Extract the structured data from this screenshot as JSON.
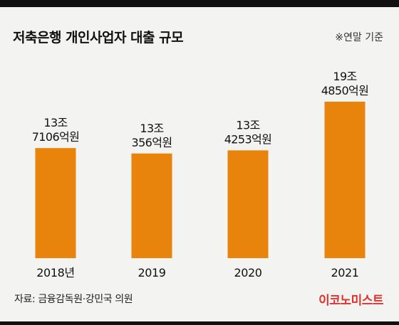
{
  "header": {
    "title": "저축은행 개인사업자 대출 규모",
    "unit_note": "※연말 기준"
  },
  "chart_data": {
    "type": "bar",
    "title": "저축은행 개인사업자 대출 규모",
    "categories": [
      "2018년",
      "2019",
      "2020",
      "2021"
    ],
    "values": [
      137106,
      130356,
      134253,
      194850
    ],
    "value_labels": [
      [
        "13조",
        "7106억원"
      ],
      [
        "13조",
        "356억원"
      ],
      [
        "13조",
        "4253억원"
      ],
      [
        "19조",
        "4850억원"
      ]
    ],
    "unit": "억원",
    "bar_color": "#e8830c",
    "grid": false
  },
  "footer": {
    "source": "자료: 금융감독원·강민국 의원",
    "brand": "이코노미스트",
    "brand_color": "#e0312f"
  }
}
